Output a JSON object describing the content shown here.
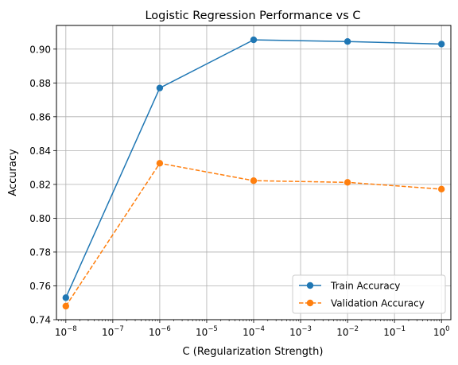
{
  "chart_data": {
    "type": "line",
    "title": "Logistic Regression Performance vs C",
    "xlabel": "C (Regularization Strength)",
    "ylabel": "Accuracy",
    "xscale": "log",
    "x": [
      1e-08,
      1e-06,
      0.0001,
      0.01,
      1
    ],
    "x_exponents": [
      -8,
      -6,
      -4,
      -2,
      0
    ],
    "xlim_exponent": [
      -8.2,
      0.2
    ],
    "ylim": [
      0.74,
      0.914
    ],
    "yticks": [
      0.74,
      0.76,
      0.78,
      0.8,
      0.82,
      0.84,
      0.86,
      0.88,
      0.9
    ],
    "ytick_labels": [
      "0.74",
      "0.76",
      "0.78",
      "0.80",
      "0.82",
      "0.84",
      "0.86",
      "0.88",
      "0.90"
    ],
    "xtick_exponents": [
      -8,
      -7,
      -6,
      -5,
      -4,
      -3,
      -2,
      -1,
      0
    ],
    "xtick_labels": [
      "−8",
      "−7",
      "−6",
      "−5",
      "−4",
      "−3",
      "−2",
      "−1",
      "0"
    ],
    "xtick_base": "10",
    "grid": true,
    "legend_position": "lower-right",
    "series": [
      {
        "name": "Train Accuracy",
        "values": [
          0.753,
          0.877,
          0.9055,
          0.9045,
          0.903
        ],
        "color": "#1f77b4",
        "linestyle": "solid",
        "marker": "circle"
      },
      {
        "name": "Validation Accuracy",
        "values": [
          0.748,
          0.8325,
          0.8222,
          0.8212,
          0.8172
        ],
        "color": "#ff7f0e",
        "linestyle": "dashed",
        "marker": "circle"
      }
    ]
  }
}
